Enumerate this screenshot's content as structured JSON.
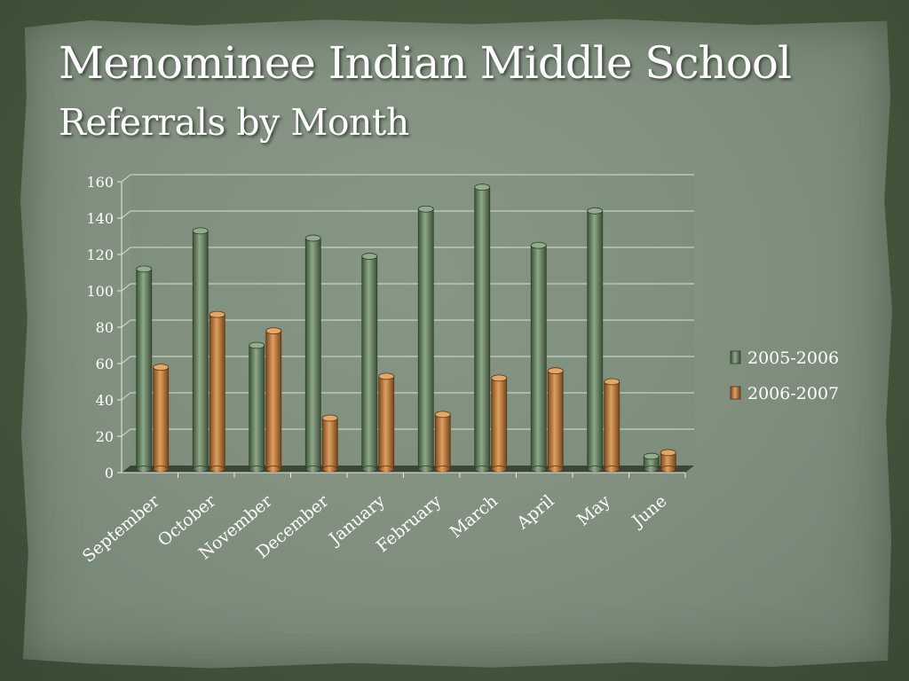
{
  "slide": {
    "title": "Menominee Indian Middle School",
    "subtitle": "Referrals by Month"
  },
  "colors": {
    "series_2005_2006": "#728a6c",
    "series_2006_2007": "#c27d3c",
    "paper": "#869584",
    "background": "#4a5a42"
  },
  "chart_data": {
    "type": "bar",
    "title": "",
    "xlabel": "",
    "ylabel": "",
    "ylim": [
      0,
      160
    ],
    "yticks": [
      0,
      20,
      40,
      60,
      80,
      100,
      120,
      140,
      160
    ],
    "categories": [
      "September",
      "October",
      "November",
      "December",
      "January",
      "February",
      "March",
      "April",
      "May",
      "June"
    ],
    "series": [
      {
        "name": "2005-2006",
        "values": [
          112,
          133,
          70,
          129,
          119,
          145,
          157,
          125,
          144,
          9
        ]
      },
      {
        "name": "2006-2007",
        "values": [
          58,
          87,
          78,
          30,
          53,
          32,
          52,
          56,
          50,
          11
        ]
      }
    ],
    "grid": true,
    "legend": "right",
    "style": "3d cylinder columns"
  }
}
